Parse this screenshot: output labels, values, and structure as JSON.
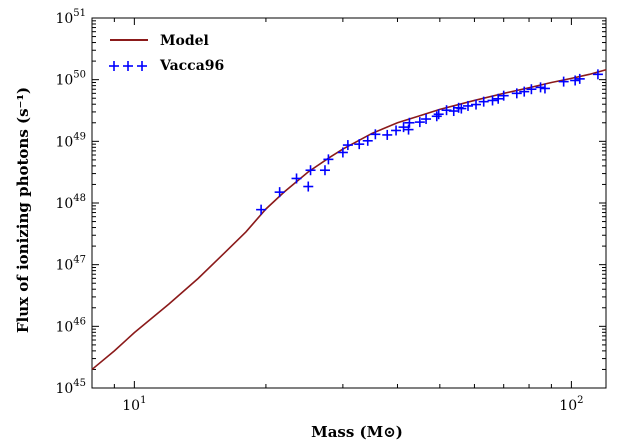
{
  "chart_data": {
    "type": "scatter",
    "title": "",
    "xlabel": "Mass (M⊙)",
    "ylabel": "Flux of ionizing photons (s⁻¹)",
    "xscale": "log",
    "yscale": "log",
    "xlim": [
      8,
      120
    ],
    "ylim": [
      1e+45,
      1e+51
    ],
    "grid": false,
    "legend_position": "top-left",
    "x_ticks": [
      {
        "value": 10,
        "base": "10",
        "exp": "1"
      },
      {
        "value": 100,
        "base": "10",
        "exp": "2"
      }
    ],
    "y_ticks": [
      {
        "value": 1e+45,
        "base": "10",
        "exp": "45"
      },
      {
        "value": 1e+46,
        "base": "10",
        "exp": "46"
      },
      {
        "value": 1e+47,
        "base": "10",
        "exp": "47"
      },
      {
        "value": 1e+48,
        "base": "10",
        "exp": "48"
      },
      {
        "value": 1e+49,
        "base": "10",
        "exp": "49"
      },
      {
        "value": 1e+50,
        "base": "10",
        "exp": "50"
      },
      {
        "value": 1e+51,
        "base": "10",
        "exp": "51"
      }
    ],
    "series": [
      {
        "name": "Model",
        "kind": "line",
        "color": "#8b1a1a",
        "x": [
          8,
          9,
          10,
          12,
          14,
          16,
          18,
          20,
          22,
          25,
          28,
          30,
          35,
          40,
          45,
          50,
          60,
          70,
          80,
          90,
          100,
          110,
          120
        ],
        "y": [
          2e+45,
          4e+45,
          7.9e+45,
          2.3e+46,
          6e+46,
          1.5e+47,
          3.4e+47,
          8e+47,
          1.5e+48,
          3.2e+48,
          5.5e+48,
          7.5e+48,
          1.35e+49,
          2e+49,
          2.6e+49,
          3.3e+49,
          4.6e+49,
          6e+49,
          7.4e+49,
          9e+49,
          1.05e+50,
          1.22e+50,
          1.45e+50
        ]
      },
      {
        "name": "Vacca96",
        "kind": "scatter",
        "marker": "+",
        "color": "#0000ff",
        "x": [
          19.5,
          21.5,
          23.5,
          25.0,
          25.3,
          27.3,
          27.8,
          30.0,
          30.8,
          32.7,
          34.2,
          35.6,
          37.9,
          39.7,
          41.3,
          42.4,
          42.6,
          45.0,
          46.5,
          49.2,
          49.7,
          51.8,
          53.8,
          55.2,
          56.0,
          58.0,
          60.5,
          63.0,
          66.0,
          68.0,
          70.0,
          75.0,
          78.0,
          81.0,
          85.0,
          87.0,
          96.0,
          102.0,
          104.5,
          115.0
        ],
        "y": [
          7.8e+47,
          1.5e+48,
          2.5e+48,
          1.85e+48,
          3.4e+48,
          3.4e+48,
          5.1e+48,
          6.6e+48,
          8.7e+48,
          9e+48,
          1.02e+49,
          1.3e+49,
          1.27e+49,
          1.5e+49,
          1.7e+49,
          1.55e+49,
          2e+49,
          2.05e+49,
          2.3e+49,
          2.55e+49,
          2.75e+49,
          3.2e+49,
          3.1e+49,
          3.5e+49,
          3.4e+49,
          3.75e+49,
          3.95e+49,
          4.4e+49,
          4.6e+49,
          4.9e+49,
          5.5e+49,
          6e+49,
          6.4e+49,
          7e+49,
          7.5e+49,
          7.2e+49,
          9.3e+49,
          9.7e+49,
          1.03e+50,
          1.22e+50
        ]
      }
    ]
  }
}
